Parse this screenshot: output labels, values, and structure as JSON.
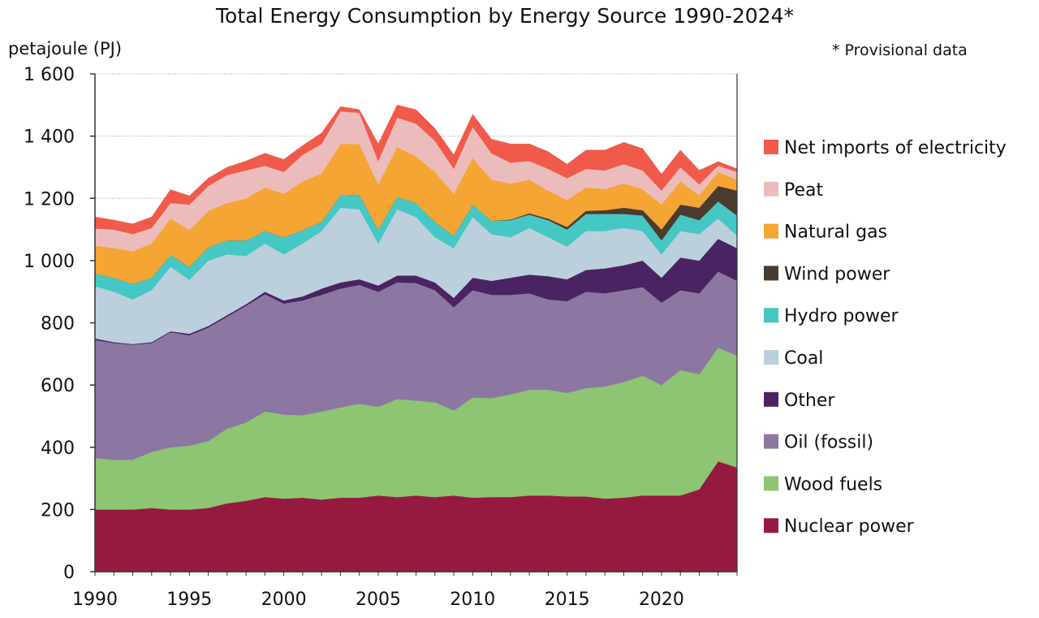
{
  "chart_data": {
    "type": "area",
    "stacked": true,
    "title": "Total Energy Consumption by Energy Source 1990-2024*",
    "note": "* Provisional data",
    "ylabel": "petajoule (PJ)",
    "xlabel": "",
    "ylim": [
      0,
      1600
    ],
    "xlim": [
      1990,
      2024
    ],
    "yticks": [
      0,
      200,
      400,
      600,
      800,
      1000,
      1200,
      1400,
      1600
    ],
    "ytick_labels": [
      "0",
      "200",
      "400",
      "600",
      "800",
      "1 000",
      "1 200",
      "1 400",
      "1 600"
    ],
    "xticks": [
      "1990",
      "1995",
      "2000",
      "2005",
      "2010",
      "2015",
      "2020"
    ],
    "grid": "horizontal dotted",
    "legend_position": "right",
    "x": [
      1990,
      1991,
      1992,
      1993,
      1994,
      1995,
      1996,
      1997,
      1998,
      1999,
      2000,
      2001,
      2002,
      2003,
      2004,
      2005,
      2006,
      2007,
      2008,
      2009,
      2010,
      2011,
      2012,
      2013,
      2014,
      2015,
      2016,
      2017,
      2018,
      2019,
      2020,
      2021,
      2022,
      2023,
      2024
    ],
    "series": [
      {
        "name": "Nuclear power",
        "color": "#961a40",
        "values": [
          200,
          200,
          200,
          205,
          200,
          200,
          205,
          220,
          228,
          240,
          235,
          238,
          232,
          238,
          238,
          245,
          240,
          245,
          240,
          245,
          238,
          240,
          240,
          245,
          245,
          242,
          242,
          235,
          238,
          245,
          245,
          245,
          265,
          355,
          335
        ]
      },
      {
        "name": "Wood fuels",
        "color": "#8dc573",
        "values": [
          165,
          160,
          160,
          180,
          200,
          205,
          215,
          240,
          252,
          275,
          270,
          265,
          283,
          290,
          302,
          285,
          315,
          305,
          305,
          273,
          322,
          318,
          330,
          340,
          340,
          333,
          348,
          360,
          372,
          385,
          355,
          403,
          370,
          365,
          360
        ]
      },
      {
        "name": "Oil (fossil)",
        "color": "#8c77a3",
        "values": [
          380,
          375,
          370,
          350,
          370,
          355,
          365,
          360,
          375,
          377,
          357,
          369,
          375,
          382,
          382,
          370,
          375,
          378,
          360,
          332,
          345,
          332,
          320,
          310,
          290,
          295,
          310,
          300,
          295,
          285,
          265,
          257,
          260,
          245,
          240
        ]
      },
      {
        "name": "Other",
        "color": "#4a2362",
        "values": [
          5,
          3,
          2,
          3,
          3,
          5,
          5,
          5,
          5,
          8,
          10,
          13,
          20,
          20,
          18,
          20,
          22,
          24,
          25,
          30,
          40,
          45,
          55,
          60,
          75,
          70,
          70,
          80,
          80,
          85,
          80,
          105,
          105,
          105,
          105
        ]
      },
      {
        "name": "Coal",
        "color": "#bccfdd",
        "values": [
          168,
          162,
          143,
          167,
          207,
          173,
          210,
          195,
          155,
          155,
          148,
          170,
          185,
          240,
          225,
          135,
          213,
          188,
          145,
          160,
          195,
          150,
          130,
          150,
          125,
          105,
          125,
          120,
          120,
          95,
          75,
          85,
          85,
          65,
          40
        ]
      },
      {
        "name": "Hydro power",
        "color": "#45c8c3",
        "values": [
          40,
          45,
          50,
          40,
          38,
          42,
          43,
          45,
          50,
          40,
          55,
          43,
          30,
          40,
          47,
          45,
          40,
          45,
          50,
          40,
          40,
          43,
          55,
          43,
          55,
          55,
          55,
          55,
          45,
          50,
          45,
          53,
          45,
          55,
          65
        ]
      },
      {
        "name": "Wind power",
        "color": "#4a3b2f",
        "values": [
          0,
          0,
          0,
          0,
          0,
          0,
          0,
          0,
          0,
          0,
          0,
          0,
          0,
          0,
          0,
          0,
          0,
          0,
          0,
          0,
          0,
          0,
          2,
          4,
          5,
          8,
          10,
          12,
          20,
          17,
          35,
          32,
          40,
          50,
          80
        ]
      },
      {
        "name": "Natural gas",
        "color": "#f5a533",
        "values": [
          90,
          95,
          105,
          110,
          117,
          118,
          117,
          120,
          135,
          140,
          140,
          157,
          155,
          165,
          163,
          145,
          160,
          150,
          160,
          135,
          150,
          132,
          116,
          108,
          90,
          87,
          75,
          68,
          78,
          68,
          80,
          75,
          40,
          45,
          35
        ]
      },
      {
        "name": "Peat",
        "color": "#ecbcbc",
        "values": [
          55,
          60,
          55,
          50,
          50,
          82,
          80,
          90,
          90,
          70,
          70,
          85,
          95,
          105,
          100,
          75,
          95,
          105,
          100,
          80,
          100,
          85,
          67,
          60,
          70,
          70,
          60,
          60,
          62,
          60,
          45,
          45,
          35,
          20,
          25
        ]
      },
      {
        "name": "Net imports of electricity",
        "color": "#ef5a4a",
        "values": [
          37,
          30,
          33,
          35,
          43,
          28,
          25,
          25,
          30,
          40,
          40,
          30,
          35,
          15,
          10,
          55,
          40,
          45,
          40,
          45,
          40,
          45,
          60,
          55,
          55,
          45,
          60,
          65,
          70,
          70,
          53,
          55,
          45,
          13,
          10
        ]
      }
    ]
  }
}
